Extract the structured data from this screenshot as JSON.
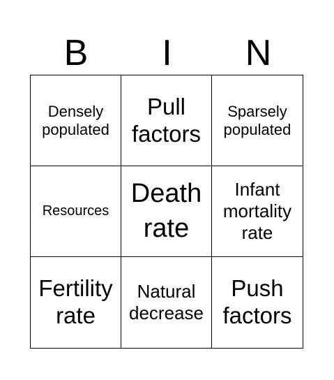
{
  "header": {
    "letters": [
      "B",
      "I",
      "N"
    ]
  },
  "cells": [
    "Densely populated",
    "Pull factors",
    "Sparsely populated",
    "Resources",
    "Death rate",
    "Infant mortality rate",
    "Fertility rate",
    "Natural decrease",
    "Push factors"
  ]
}
